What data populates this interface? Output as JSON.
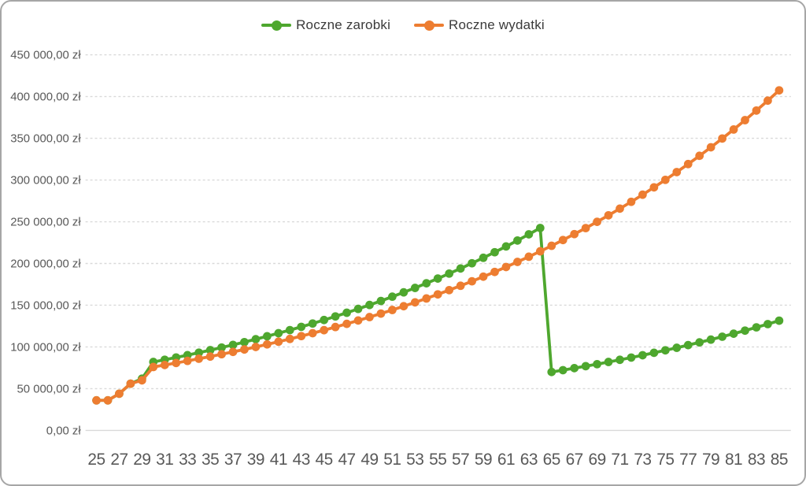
{
  "legend": {
    "items": [
      {
        "label": "Roczne zarobki",
        "color": "#4ea72e"
      },
      {
        "label": "Roczne wydatki",
        "color": "#ed7d31"
      }
    ]
  },
  "colors": {
    "earnings_green": "#4ea72e",
    "expenses_orange": "#ed7d31",
    "gridline_gray": "#d9d9d9",
    "axis_text_gray": "#595959",
    "legend_text": "#3a3a3a",
    "frame_border": "#a6a6a6",
    "background": "#ffffff"
  },
  "chart_data": {
    "type": "line",
    "title": "",
    "xlabel": "",
    "ylabel": "",
    "grid": "horizontal-dashed",
    "legend_position": "top-center",
    "currency": "zł",
    "ylim": [
      0,
      450000
    ],
    "y_tick_step": 50000,
    "y_tick_labels": [
      "0,00 zł",
      "50 000,00 zł",
      "100 000,00 zł",
      "150 000,00 zł",
      "200 000,00 zł",
      "250 000,00 zł",
      "300 000,00 zł",
      "350 000,00 zł",
      "400 000,00 zł",
      "450 000,00 zł"
    ],
    "x_tick_labels": [
      "25",
      "27",
      "29",
      "31",
      "33",
      "35",
      "37",
      "39",
      "41",
      "43",
      "45",
      "47",
      "49",
      "51",
      "53",
      "55",
      "57",
      "59",
      "61",
      "63",
      "65",
      "67",
      "69",
      "71",
      "73",
      "75",
      "77",
      "79",
      "81",
      "83",
      "85"
    ],
    "x": [
      25,
      26,
      27,
      28,
      29,
      30,
      31,
      32,
      33,
      34,
      35,
      36,
      37,
      38,
      39,
      40,
      41,
      42,
      43,
      44,
      45,
      46,
      47,
      48,
      49,
      50,
      51,
      52,
      53,
      54,
      55,
      56,
      57,
      58,
      59,
      60,
      61,
      62,
      63,
      64,
      65,
      66,
      67,
      68,
      69,
      70,
      71,
      72,
      73,
      74,
      75,
      76,
      77,
      78,
      79,
      80,
      81,
      82,
      83,
      84,
      85
    ],
    "series": [
      {
        "name": "Roczne zarobki",
        "color": "#4ea72e",
        "values": [
          36000,
          36000,
          44000,
          56000,
          62000,
          82000,
          84700,
          87400,
          90200,
          93200,
          96200,
          99300,
          102500,
          105800,
          109300,
          112800,
          116500,
          120200,
          124100,
          128100,
          132300,
          136600,
          141000,
          145600,
          150300,
          155100,
          160200,
          165400,
          170700,
          176300,
          182000,
          187900,
          194000,
          200300,
          206800,
          213500,
          220400,
          227500,
          234900,
          242500,
          70000,
          72200,
          74600,
          77000,
          79400,
          82000,
          84600,
          87300,
          90100,
          93000,
          96000,
          99000,
          102200,
          105500,
          108800,
          112300,
          115900,
          119600,
          123500,
          127400,
          131500
        ]
      },
      {
        "name": "Roczne wydatki",
        "color": "#ed7d31",
        "values": [
          36000,
          36000,
          44000,
          56000,
          60000,
          76000,
          78400,
          80800,
          83300,
          85900,
          88500,
          91300,
          94100,
          97000,
          100000,
          103100,
          106300,
          109600,
          113000,
          116500,
          120100,
          123900,
          127700,
          131700,
          135800,
          140000,
          144300,
          148800,
          153400,
          158100,
          163000,
          168100,
          173300,
          178700,
          184200,
          189900,
          195800,
          201900,
          208100,
          214600,
          221200,
          228100,
          235200,
          242400,
          249900,
          257700,
          265700,
          273900,
          282400,
          291200,
          300200,
          309500,
          319100,
          329000,
          339200,
          349700,
          360500,
          371700,
          383200,
          395100,
          407400
        ]
      }
    ]
  }
}
